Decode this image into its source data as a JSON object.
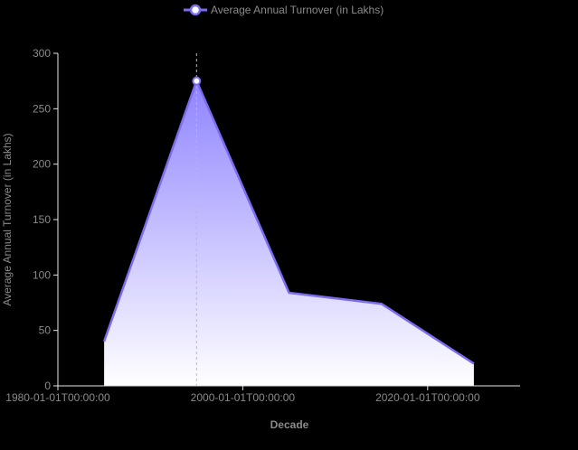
{
  "chart_data": {
    "type": "area",
    "title": "",
    "xlabel": "Decade",
    "ylabel": "Average Annual Turnover (in Lakhs)",
    "x_ticks": [
      "1980-01-01T00:00:00",
      "2000-01-01T00:00:00",
      "2020-01-01T00:00:00"
    ],
    "x_tick_years": [
      1980,
      2000,
      2020
    ],
    "xlim_years": [
      1980,
      2030
    ],
    "y_ticks": [
      0,
      50,
      100,
      150,
      200,
      250,
      300
    ],
    "ylim": [
      0,
      300
    ],
    "grid": false,
    "legend_position": "top",
    "series": [
      {
        "name": "Average Annual Turnover (in Lakhs)",
        "color": "#7b6cf0",
        "x_years": [
          1985,
          1995,
          2005,
          2015,
          2025
        ],
        "values": [
          40,
          275,
          84,
          74,
          20
        ]
      }
    ],
    "highlighted_point_index": 1
  }
}
